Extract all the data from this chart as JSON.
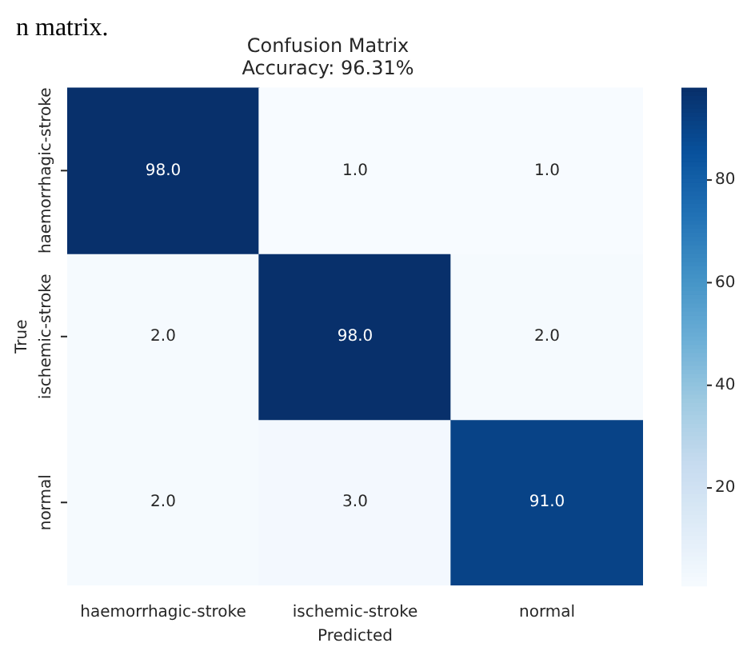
{
  "chart_data": {
    "type": "heatmap",
    "title": "Confusion Matrix",
    "subtitle": "Accuracy: 96.31%",
    "xlabel": "Predicted",
    "ylabel": "True",
    "categories": [
      "haemorrhagic-stroke",
      "ischemic-stroke",
      "normal"
    ],
    "y_categories": [
      "haemorrhagic-stroke",
      "ischemic-stroke",
      "normal"
    ],
    "cells": [
      [
        98,
        1,
        1
      ],
      [
        2,
        98,
        2
      ],
      [
        2,
        3,
        91
      ]
    ],
    "cell_labels": [
      [
        "98.0",
        "1.0",
        "1.0"
      ],
      [
        "2.0",
        "98.0",
        "2.0"
      ],
      [
        "2.0",
        "3.0",
        "91.0"
      ]
    ],
    "clim": [
      1,
      98
    ],
    "cticks": [
      20,
      40,
      60,
      80
    ],
    "annotations": [
      "n matrix."
    ]
  }
}
